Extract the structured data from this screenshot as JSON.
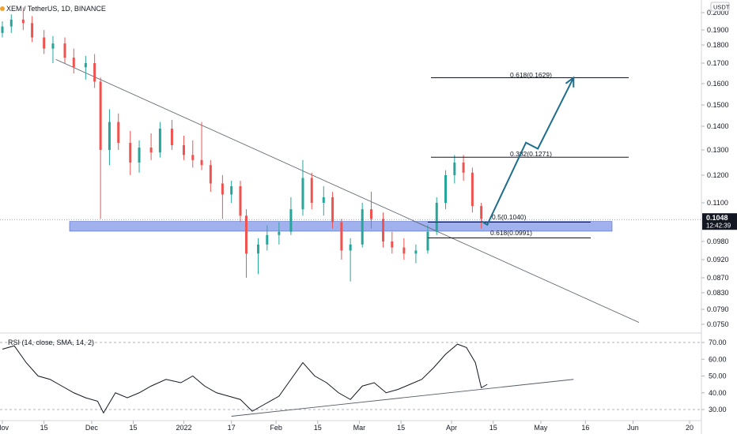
{
  "header": {
    "symbol_title": "XEM / TetherUS, 1D, BINANCE",
    "currency_badge": "USDT"
  },
  "price_axis": {
    "ticks": [
      "0.2000",
      "0.1900",
      "0.1800",
      "0.1700",
      "0.1600",
      "0.1500",
      "0.1400",
      "0.1300",
      "0.1200",
      "0.1100",
      "0.0980",
      "0.0920",
      "0.0870",
      "0.0830",
      "0.0790",
      "0.0750"
    ],
    "current_price": "0.1048",
    "countdown": "12:42:39",
    "current_color": "#131722"
  },
  "time_axis": {
    "ticks": [
      "Nov",
      "15",
      "Dec",
      "15",
      "2022",
      "17",
      "Feb",
      "15",
      "Mar",
      "15",
      "Apr",
      "15",
      "May",
      "16",
      "Jun",
      "20"
    ]
  },
  "fibonacci": {
    "levels": [
      {
        "label": "0.618(0.1629)",
        "value": 0.1629
      },
      {
        "label": "0.382(0.1271)",
        "value": 0.1271
      },
      {
        "label": "0.5(0.1040)",
        "value": 0.104
      },
      {
        "label": "0.618(0.0991)",
        "value": 0.0991
      }
    ]
  },
  "support_zone": {
    "low": 0.1012,
    "high": 0.1042,
    "color": "#7b93e6"
  },
  "rsi": {
    "title": "RSI (14, close, SMA, 14, 2)",
    "ticks": [
      "70.00",
      "60.00",
      "50.00",
      "40.00",
      "30.00"
    ],
    "upper_band": 70,
    "lower_band": 30
  },
  "colors": {
    "bullish": "#26a69a",
    "bearish": "#ef5350",
    "projection": "#1f6e8c"
  },
  "chart_data": {
    "type": "candlestick",
    "title": "XEM / TetherUS, 1D, BINANCE",
    "x_range": [
      "2021-11-01",
      "2022-06-22"
    ],
    "y_axis_ticks": [
      0.2,
      0.19,
      0.18,
      0.17,
      0.16,
      0.15,
      0.14,
      0.13,
      0.12,
      0.11,
      0.098,
      0.092,
      0.087,
      0.083,
      0.079,
      0.075
    ],
    "ohlc": [
      [
        "2021-11-01",
        0.188,
        0.195,
        0.185,
        0.192
      ],
      [
        "2021-11-04",
        0.192,
        0.199,
        0.188,
        0.196
      ],
      [
        "2021-11-08",
        0.196,
        0.203,
        0.19,
        0.194
      ],
      [
        "2021-11-11",
        0.194,
        0.198,
        0.182,
        0.185
      ],
      [
        "2021-11-15",
        0.185,
        0.19,
        0.175,
        0.178
      ],
      [
        "2021-11-18",
        0.178,
        0.186,
        0.17,
        0.181
      ],
      [
        "2021-11-22",
        0.181,
        0.185,
        0.17,
        0.173
      ],
      [
        "2021-11-25",
        0.173,
        0.178,
        0.165,
        0.168
      ],
      [
        "2021-11-29",
        0.168,
        0.174,
        0.162,
        0.17
      ],
      [
        "2021-12-02",
        0.17,
        0.175,
        0.158,
        0.161
      ],
      [
        "2021-12-04",
        0.161,
        0.163,
        0.105,
        0.13
      ],
      [
        "2021-12-07",
        0.13,
        0.148,
        0.124,
        0.142
      ],
      [
        "2021-12-10",
        0.142,
        0.146,
        0.13,
        0.133
      ],
      [
        "2021-12-14",
        0.133,
        0.138,
        0.12,
        0.125
      ],
      [
        "2021-12-17",
        0.125,
        0.134,
        0.121,
        0.131
      ],
      [
        "2021-12-21",
        0.131,
        0.137,
        0.126,
        0.129
      ],
      [
        "2021-12-24",
        0.129,
        0.142,
        0.127,
        0.139
      ],
      [
        "2021-12-28",
        0.139,
        0.143,
        0.13,
        0.132
      ],
      [
        "2022-01-01",
        0.132,
        0.136,
        0.126,
        0.128
      ],
      [
        "2022-01-04",
        0.128,
        0.134,
        0.123,
        0.126
      ],
      [
        "2022-01-07",
        0.126,
        0.142,
        0.122,
        0.124
      ],
      [
        "2022-01-10",
        0.124,
        0.126,
        0.114,
        0.117
      ],
      [
        "2022-01-14",
        0.117,
        0.12,
        0.105,
        0.113
      ],
      [
        "2022-01-17",
        0.113,
        0.118,
        0.11,
        0.116
      ],
      [
        "2022-01-20",
        0.116,
        0.118,
        0.104,
        0.106
      ],
      [
        "2022-01-22",
        0.106,
        0.108,
        0.087,
        0.094
      ],
      [
        "2022-01-26",
        0.094,
        0.099,
        0.088,
        0.097
      ],
      [
        "2022-01-29",
        0.097,
        0.103,
        0.095,
        0.1
      ],
      [
        "2022-02-02",
        0.1,
        0.104,
        0.097,
        0.101
      ],
      [
        "2022-02-06",
        0.101,
        0.112,
        0.1,
        0.108
      ],
      [
        "2022-02-10",
        0.108,
        0.126,
        0.106,
        0.119
      ],
      [
        "2022-02-13",
        0.119,
        0.121,
        0.108,
        0.11
      ],
      [
        "2022-02-17",
        0.11,
        0.116,
        0.106,
        0.112
      ],
      [
        "2022-02-20",
        0.112,
        0.114,
        0.102,
        0.104
      ],
      [
        "2022-02-23",
        0.104,
        0.105,
        0.092,
        0.095
      ],
      [
        "2022-02-26",
        0.095,
        0.099,
        0.086,
        0.097
      ],
      [
        "2022-03-02",
        0.097,
        0.11,
        0.096,
        0.108
      ],
      [
        "2022-03-05",
        0.108,
        0.114,
        0.102,
        0.105
      ],
      [
        "2022-03-09",
        0.105,
        0.107,
        0.096,
        0.098
      ],
      [
        "2022-03-12",
        0.098,
        0.101,
        0.094,
        0.096
      ],
      [
        "2022-03-16",
        0.096,
        0.099,
        0.092,
        0.094
      ],
      [
        "2022-03-20",
        0.094,
        0.097,
        0.091,
        0.095
      ],
      [
        "2022-03-24",
        0.095,
        0.103,
        0.094,
        0.101
      ],
      [
        "2022-03-27",
        0.101,
        0.112,
        0.1,
        0.11
      ],
      [
        "2022-03-30",
        0.11,
        0.122,
        0.108,
        0.12
      ],
      [
        "2022-04-02",
        0.12,
        0.128,
        0.117,
        0.125
      ],
      [
        "2022-04-05",
        0.125,
        0.128,
        0.118,
        0.121
      ],
      [
        "2022-04-08",
        0.121,
        0.123,
        0.107,
        0.109
      ],
      [
        "2022-04-11",
        0.109,
        0.11,
        0.102,
        0.105
      ]
    ],
    "trendline": {
      "from": [
        "2021-11-19",
        0.172
      ],
      "to": [
        "2022-06-03",
        0.0755
      ]
    },
    "projection_path": [
      [
        "2022-04-11",
        0.1043
      ],
      [
        "2022-04-13",
        0.1032
      ],
      [
        "2022-04-26",
        0.1331
      ],
      [
        "2022-04-30",
        0.1305
      ],
      [
        "2022-05-12",
        0.1629
      ]
    ],
    "rsi_values": [
      [
        "2021-11-01",
        66
      ],
      [
        "2021-11-05",
        68
      ],
      [
        "2021-11-09",
        58
      ],
      [
        "2021-11-13",
        50
      ],
      [
        "2021-11-17",
        48
      ],
      [
        "2021-11-21",
        44
      ],
      [
        "2021-11-25",
        40
      ],
      [
        "2021-11-29",
        37
      ],
      [
        "2021-12-03",
        35
      ],
      [
        "2021-12-05",
        28
      ],
      [
        "2021-12-09",
        40
      ],
      [
        "2021-12-13",
        37
      ],
      [
        "2021-12-17",
        40
      ],
      [
        "2021-12-21",
        44
      ],
      [
        "2021-12-26",
        48
      ],
      [
        "2021-12-31",
        46
      ],
      [
        "2022-01-04",
        50
      ],
      [
        "2022-01-08",
        44
      ],
      [
        "2022-01-12",
        40
      ],
      [
        "2022-01-16",
        38
      ],
      [
        "2022-01-20",
        36
      ],
      [
        "2022-01-24",
        29
      ],
      [
        "2022-01-28",
        33
      ],
      [
        "2022-02-02",
        38
      ],
      [
        "2022-02-06",
        48
      ],
      [
        "2022-02-10",
        58
      ],
      [
        "2022-02-14",
        50
      ],
      [
        "2022-02-18",
        46
      ],
      [
        "2022-02-22",
        40
      ],
      [
        "2022-02-26",
        36
      ],
      [
        "2022-03-02",
        44
      ],
      [
        "2022-03-06",
        46
      ],
      [
        "2022-03-10",
        40
      ],
      [
        "2022-03-14",
        42
      ],
      [
        "2022-03-18",
        45
      ],
      [
        "2022-03-22",
        48
      ],
      [
        "2022-03-26",
        55
      ],
      [
        "2022-03-30",
        63
      ],
      [
        "2022-04-03",
        69
      ],
      [
        "2022-04-06",
        67
      ],
      [
        "2022-04-09",
        58
      ],
      [
        "2022-04-11",
        43
      ],
      [
        "2022-04-13",
        45
      ]
    ],
    "rsi_trendline": {
      "from": [
        "2022-01-17",
        26
      ],
      "to": [
        "2022-05-12",
        48
      ]
    }
  }
}
